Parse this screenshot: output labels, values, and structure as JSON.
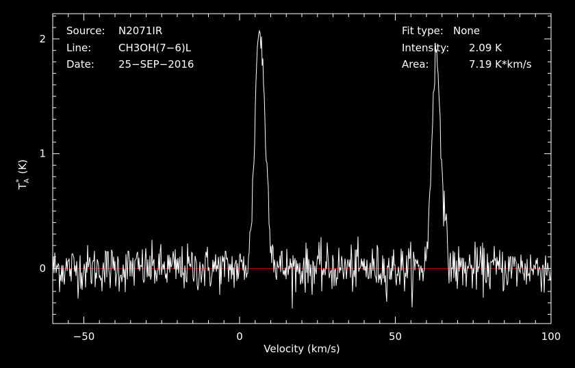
{
  "colors": {
    "background": "#000000",
    "foreground": "#ffffff",
    "zero_line": "#c00000"
  },
  "chart_data": {
    "type": "line",
    "xlabel": "Velocity (km/s)",
    "ylabel": "T",
    "ylabel_sub": "A",
    "ylabel_sup": "*",
    "ylabel_unit": "(K)",
    "xlim": [
      -60,
      100
    ],
    "ylim": [
      -0.48,
      2.22
    ],
    "x_ticks": [
      -50,
      0,
      50,
      100
    ],
    "x_tick_labels": [
      "−50",
      "0",
      "50",
      "100"
    ],
    "y_ticks": [
      0,
      1,
      2
    ],
    "y_tick_labels": [
      "0",
      "1",
      "2"
    ],
    "zero_line": 0,
    "annotations_left": [
      {
        "key": "Source:",
        "value": "N2071IR"
      },
      {
        "key": "Line:",
        "value": "CH3OH(7−6)L"
      },
      {
        "key": "Date:",
        "value": "25−SEP−2016"
      }
    ],
    "annotations_right": [
      {
        "key": "Fit type:",
        "value": "None"
      },
      {
        "key": "Intensity:",
        "value": "2.09 K"
      },
      {
        "key": "Area:",
        "value": "7.19 K*km/s"
      }
    ],
    "noise_rms": 0.1,
    "peaks": [
      {
        "x": 6.3,
        "y": 2.09,
        "width_left": 1.4,
        "width_right": 1.9
      },
      {
        "x": 63.0,
        "y": 1.85,
        "width_left": 1.3,
        "width_right": 1.7
      }
    ]
  }
}
